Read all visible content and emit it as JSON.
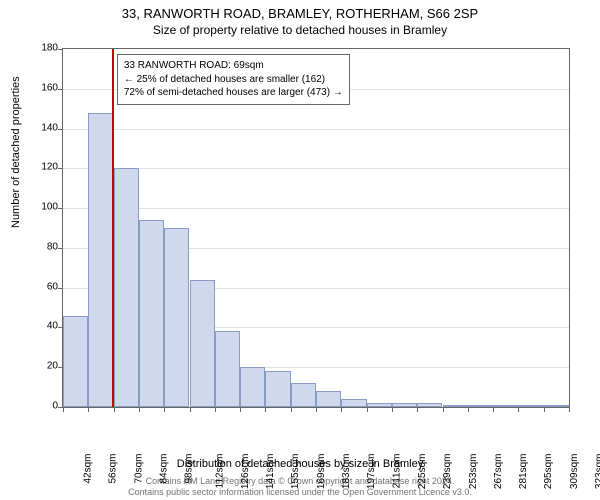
{
  "title_line1": "33, RANWORTH ROAD, BRAMLEY, ROTHERHAM, S66 2SP",
  "title_line2": "Size of property relative to detached houses in Bramley",
  "ylabel": "Number of detached properties",
  "xlabel": "Distribution of detached houses by size in Bramley",
  "footer_line1": "Contains HM Land Registry data © Crown copyright and database right 2024.",
  "footer_line2": "Contains public sector information licensed under the Open Government Licence v3.0.",
  "chart": {
    "type": "histogram",
    "ylim": [
      0,
      180
    ],
    "ytick_step": 20,
    "yticks": [
      0,
      20,
      40,
      60,
      80,
      100,
      120,
      140,
      160,
      180
    ],
    "x_categories": [
      "42sqm",
      "56sqm",
      "70sqm",
      "84sqm",
      "98sqm",
      "112sqm",
      "126sqm",
      "141sqm",
      "155sqm",
      "169sqm",
      "183sqm",
      "197sqm",
      "211sqm",
      "225sqm",
      "239sqm",
      "253sqm",
      "267sqm",
      "281sqm",
      "295sqm",
      "309sqm",
      "323sqm"
    ],
    "bar_values": [
      46,
      148,
      120,
      94,
      90,
      64,
      38,
      20,
      18,
      12,
      8,
      4,
      2,
      2,
      2,
      1,
      1,
      0,
      1,
      1
    ],
    "bar_fill_color": "#cfd8ec",
    "bar_border_color": "#8a9bc4",
    "reference_line_index": 1.93,
    "reference_line_color": "#cc0000",
    "background_color": "#ffffff",
    "grid_color": "#e0e0e0",
    "axis_color": "#666666",
    "text_color": "#000000"
  },
  "info_box": {
    "line1": "33 RANWORTH ROAD: 69sqm",
    "line2": "← 25% of detached houses are smaller (162)",
    "line3": "72% of semi-detached houses are larger (473) →"
  }
}
